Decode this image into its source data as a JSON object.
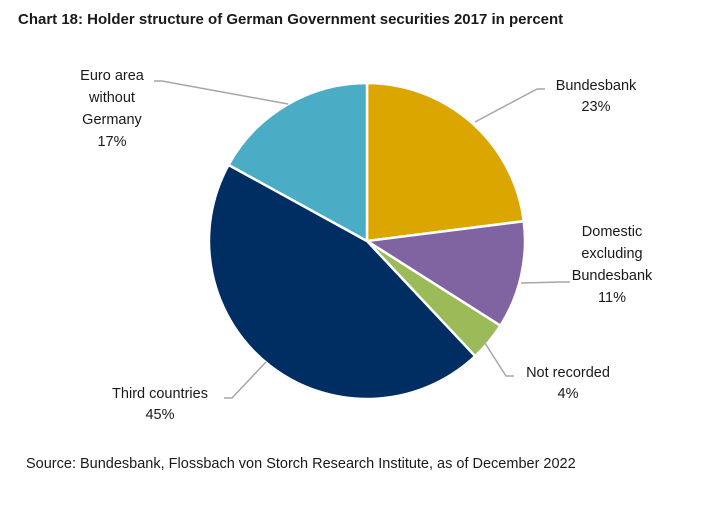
{
  "chart_data": {
    "type": "pie",
    "title": "Chart 18: Holder structure of German Government securities 2017 in percent",
    "source": "Source: Bundesbank, Flossbach von Storch Research Institute, as of December 2022",
    "unit": "%",
    "slices": [
      {
        "name": "Bundesbank",
        "label_lines": [
          "Bundesbank"
        ],
        "value": 23,
        "value_text": "23%",
        "color": "#DBA600",
        "label_side": "right"
      },
      {
        "name": "Domestic excluding Bundesbank",
        "label_lines": [
          "Domestic",
          "excluding",
          "Bundesbank"
        ],
        "value": 11,
        "value_text": "11%",
        "color": "#8064A2",
        "label_side": "right"
      },
      {
        "name": "Not recorded",
        "label_lines": [
          "Not recorded"
        ],
        "value": 4,
        "value_text": "4%",
        "color": "#9BBB59",
        "label_side": "right"
      },
      {
        "name": "Third countries",
        "label_lines": [
          "Third countries"
        ],
        "value": 45,
        "value_text": "45%",
        "color": "#002D62",
        "label_side": "left"
      },
      {
        "name": "Euro area without Germany",
        "label_lines": [
          "Euro area",
          "without",
          "Germany"
        ],
        "value": 17,
        "value_text": "17%",
        "color": "#4BACC6",
        "label_side": "left"
      }
    ]
  }
}
